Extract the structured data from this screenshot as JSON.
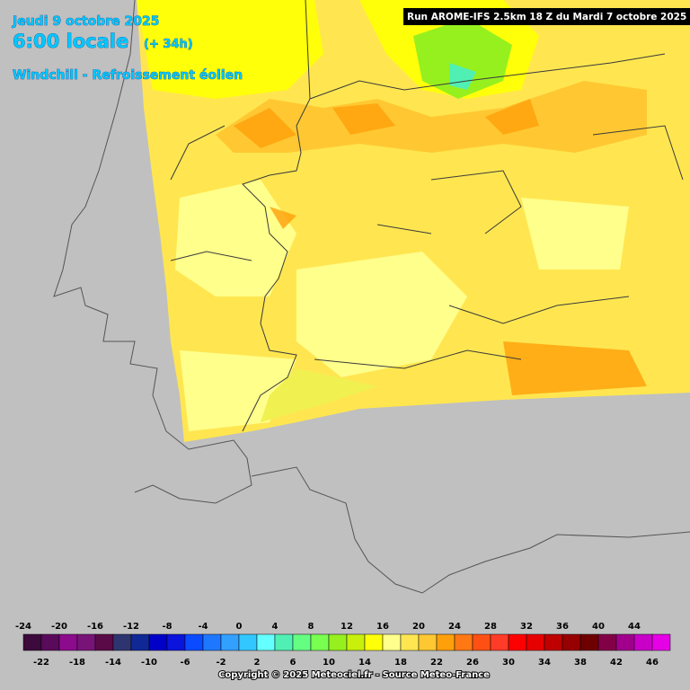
{
  "header": {
    "date": "Jeudi 9 octobre 2025",
    "time": "6:00 locale",
    "lead": "(+ 34h)",
    "parameter": "Windchill - Refroissement éolien",
    "run": "Run AROME-IFS 2.5km 18 Z du Mardi 7 octobre 2025"
  },
  "legend": {
    "values": [
      -24,
      -22,
      -20,
      -18,
      -16,
      -14,
      -12,
      -10,
      -8,
      -6,
      -4,
      -2,
      0,
      2,
      4,
      6,
      8,
      10,
      12,
      14,
      16,
      18,
      20,
      22,
      24,
      26,
      28,
      30,
      32,
      34,
      36,
      38,
      40,
      42,
      44,
      46
    ],
    "colors": [
      "#3c0a3c",
      "#5a0a5a",
      "#8c0a8c",
      "#781478",
      "#5a0a46",
      "#2e3470",
      "#0f2896",
      "#0000c8",
      "#0a14dc",
      "#0a4bff",
      "#1e78ff",
      "#32a0ff",
      "#32c8ff",
      "#64ffff",
      "#50f0b4",
      "#64ff82",
      "#78ff50",
      "#96f01e",
      "#c8f00a",
      "#ffff0a",
      "#ffff8c",
      "#ffe650",
      "#ffc832",
      "#ffa00a",
      "#ff7814",
      "#ff5014",
      "#ff3c28",
      "#ff0000",
      "#e60000",
      "#be0000",
      "#960000",
      "#6e0000",
      "#820046",
      "#a0008c",
      "#c800c8",
      "#e600e6"
    ]
  },
  "footer": {
    "copyright": "Copyright © 2025 Meteociel.fr - Source Meteo-France"
  }
}
